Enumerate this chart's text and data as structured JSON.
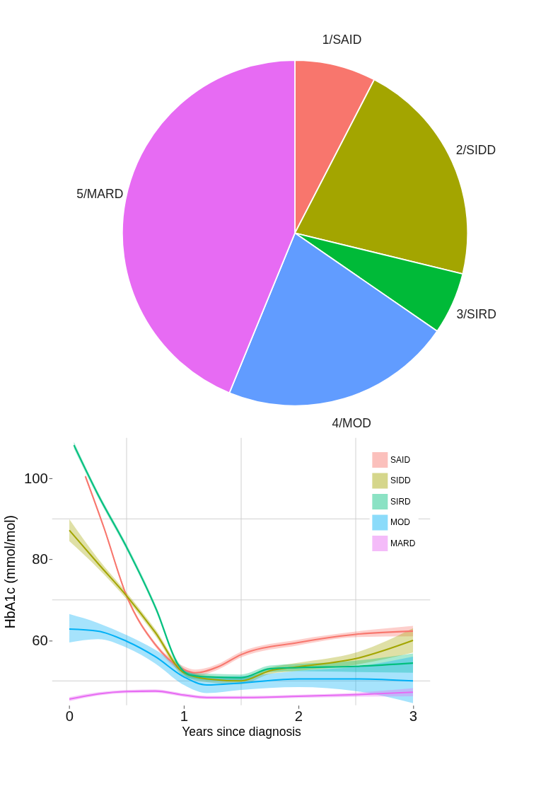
{
  "chart_data": [
    {
      "type": "pie",
      "categories": [
        "1/SAID",
        "2/SIDD",
        "3/SIRD",
        "4/MOD",
        "5/MARD"
      ],
      "values": [
        7.6,
        21.2,
        5.8,
        21.6,
        43.8
      ],
      "colors": [
        "#f8766d",
        "#a3a500",
        "#00ba38",
        "#619cff",
        "#e76bf3"
      ],
      "legend": false
    },
    {
      "type": "line",
      "xlabel": "Years since diagnosis",
      "ylabel": "HbA1c (mmol/mol)",
      "xlim": [
        -0.15,
        3.15
      ],
      "ylim": [
        44,
        110
      ],
      "xticks": [
        0,
        {
          "value": 0.5,
          "label": null
        },
        1,
        {
          "value": 1.5,
          "label": null
        },
        2,
        {
          "value": 2.5,
          "label": null
        },
        3
      ],
      "yticks": [
        {
          "value": 50,
          "label": null
        },
        60,
        {
          "value": 70,
          "label": null
        },
        80,
        {
          "value": 90,
          "label": null
        },
        100
      ],
      "grid": true,
      "legend": "top right",
      "marker": "none",
      "line_style": "solid",
      "series": [
        {
          "name": "SAID",
          "color": "#f8766d",
          "x": [
            0.14,
            0.3,
            0.5,
            0.75,
            1.0,
            1.1,
            1.3,
            1.5,
            2.0,
            2.5,
            3.0
          ],
          "values": [
            100.5,
            88,
            71,
            59,
            52.8,
            52,
            53.5,
            56.5,
            59.5,
            61.5,
            62.3
          ],
          "lower": [
            100,
            87.5,
            70.5,
            58.5,
            52,
            51.2,
            52.8,
            55.8,
            58.8,
            60.8,
            61
          ],
          "upper": [
            101,
            88.5,
            71.5,
            59.5,
            53.6,
            52.8,
            54.2,
            57.2,
            60.2,
            62.2,
            63.6
          ]
        },
        {
          "name": "SIDD",
          "color": "#a3a500",
          "x": [
            0,
            0.25,
            0.5,
            0.75,
            1.0,
            1.2,
            1.5,
            1.75,
            2.0,
            2.5,
            3.0
          ],
          "values": [
            87.2,
            79,
            71,
            62,
            52,
            50.5,
            50,
            52.5,
            53.5,
            55.5,
            60
          ],
          "lower": [
            84.5,
            77.8,
            70.2,
            61.2,
            51.2,
            49.7,
            49.2,
            51.7,
            52.5,
            54,
            57
          ],
          "upper": [
            89.9,
            80.2,
            71.8,
            62.8,
            52.8,
            51.3,
            50.8,
            53.3,
            54.5,
            57,
            63
          ]
        },
        {
          "name": "SIRD",
          "color": "#00bf7d",
          "x": [
            0.04,
            0.25,
            0.5,
            0.76,
            0.95,
            1.05,
            1.2,
            1.5,
            1.75,
            2.0,
            2.5,
            3.0
          ],
          "values": [
            108.2,
            96,
            83,
            67.6,
            54,
            51.5,
            51,
            50.8,
            53,
            53.3,
            53.6,
            54.4
          ],
          "lower": [
            107.4,
            95.3,
            82.3,
            66.9,
            53.3,
            50.7,
            50.2,
            50,
            52.2,
            52.4,
            52.2,
            52
          ],
          "upper": [
            109,
            96.7,
            83.7,
            68.3,
            54.7,
            52.3,
            51.8,
            51.6,
            53.8,
            54.2,
            55,
            56.8
          ]
        },
        {
          "name": "MOD",
          "color": "#00b0f6",
          "x": [
            0,
            0.25,
            0.5,
            0.75,
            1.0,
            1.2,
            1.5,
            2.0,
            2.5,
            3.0
          ],
          "values": [
            62.8,
            62.3,
            59.8,
            56,
            51,
            49,
            49.5,
            50.5,
            50.5,
            50
          ],
          "lower": [
            59.5,
            60.3,
            58.2,
            54.3,
            49,
            47,
            47.8,
            48.5,
            47.5,
            44.5
          ],
          "upper": [
            66.5,
            64.3,
            61.3,
            57.7,
            53,
            51,
            51.2,
            52.5,
            53.5,
            56
          ]
        },
        {
          "name": "MARD",
          "color": "#e76bf3",
          "x": [
            0,
            0.25,
            0.5,
            0.75,
            1.0,
            1.2,
            1.5,
            2.0,
            2.5,
            3.0
          ],
          "values": [
            45.5,
            46.8,
            47.4,
            47.5,
            46.5,
            45.9,
            45.9,
            46.2,
            46.6,
            47.2
          ],
          "lower": [
            45,
            46.4,
            47,
            47.1,
            46.1,
            45.5,
            45.5,
            45.8,
            46.1,
            46.2
          ],
          "upper": [
            46,
            47.2,
            47.8,
            47.9,
            46.9,
            46.3,
            46.3,
            46.6,
            47.1,
            48.2
          ]
        }
      ]
    }
  ]
}
